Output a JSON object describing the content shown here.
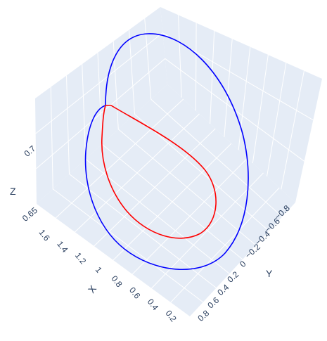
{
  "chart_data": {
    "type": "line",
    "subtype": "scatter3d",
    "title": "",
    "axes": {
      "x": {
        "label": "X",
        "ticks": [
          "1.6",
          "1.4",
          "1.2",
          "1",
          "0.8",
          "0.6",
          "0.4",
          "0.2"
        ],
        "range": [
          0.1,
          1.7
        ]
      },
      "y": {
        "label": "Y",
        "ticks": [
          "−0.8",
          "−0.6",
          "−0.4",
          "−0.2",
          "0",
          "0.2",
          "0.4",
          "0.6",
          "0.8"
        ],
        "range": [
          -0.9,
          0.9
        ]
      },
      "z": {
        "label": "Z",
        "ticks": [
          "0.7",
          "0.65"
        ],
        "range": [
          0.63,
          0.73
        ]
      }
    },
    "grid": true,
    "legend": "none",
    "series": [
      {
        "color": "#0000ff",
        "shape": "closed loop (outer)"
      },
      {
        "color": "#ff0000",
        "shape": "closed loop (inner)"
      }
    ]
  }
}
